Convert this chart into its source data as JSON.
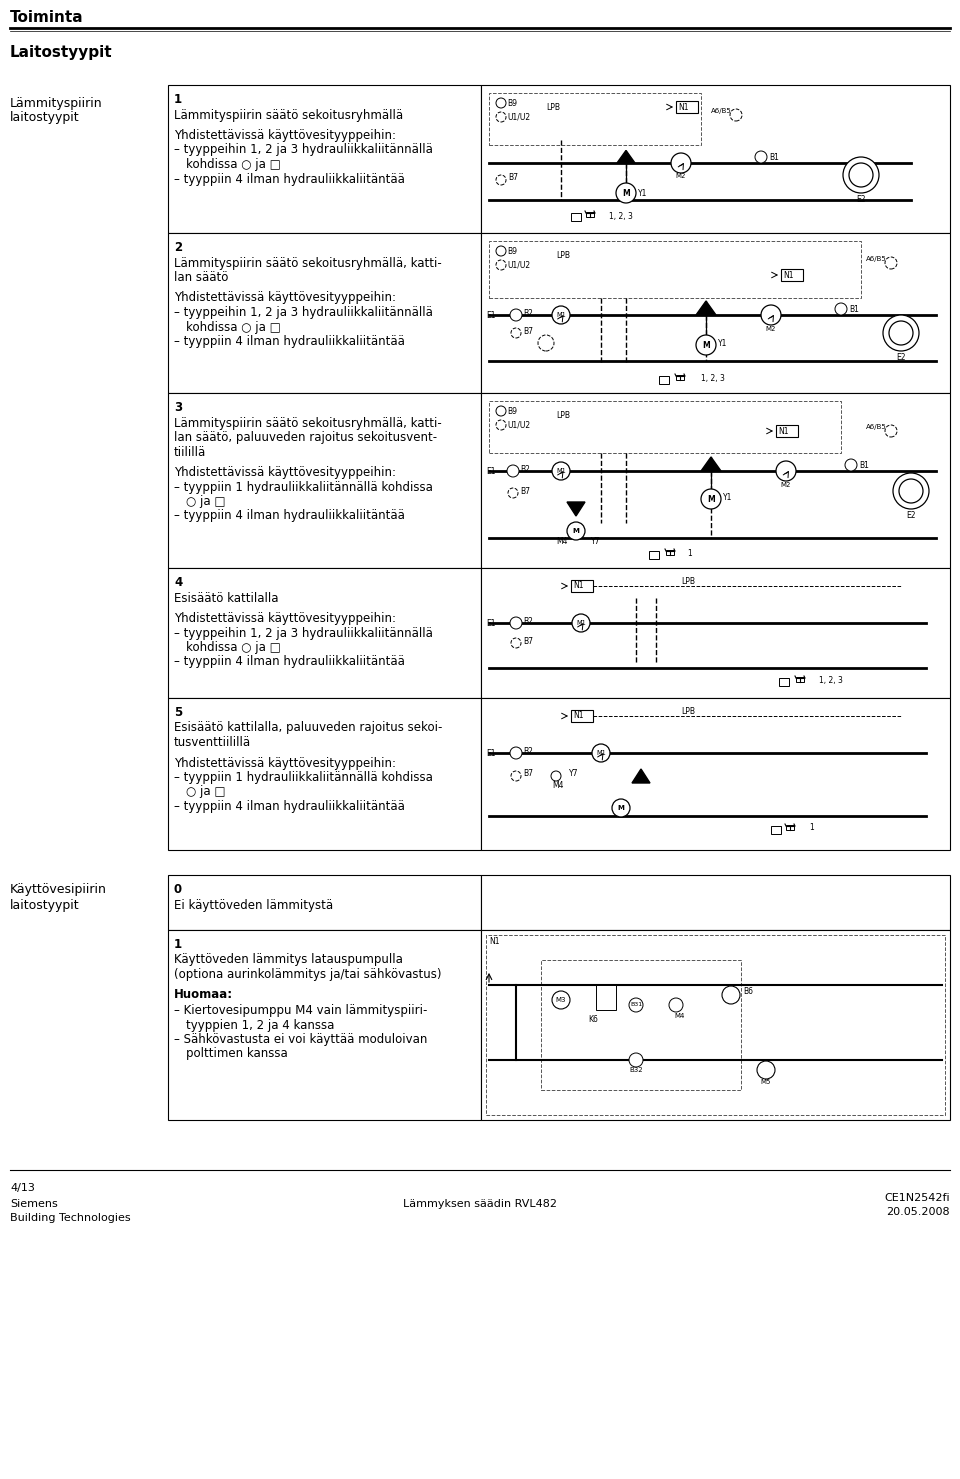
{
  "title": "Toiminta",
  "section1_title": "Laitostyypit",
  "left_label1_line1": "Lämmityspiirin",
  "left_label1_line2": "laitostyypit",
  "left_label2_line1": "Käyttövesipiirin",
  "left_label2_line2": "laitostyypit",
  "footer_page": "4/13",
  "footer_company1": "Siemens",
  "footer_company2": "Building Technologies",
  "footer_product": "Lämmyksen säädin RVL482",
  "footer_code": "CE1N2542fi",
  "footer_date": "20.05.2008"
}
